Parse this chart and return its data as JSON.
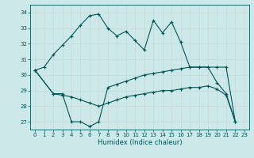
{
  "title": "",
  "xlabel": "Humidex (Indice chaleur)",
  "bg_color": "#cce8e8",
  "grid_color": "#aacccc",
  "line_color": "#005555",
  "xlim": [
    -0.5,
    23.5
  ],
  "ylim": [
    26.5,
    34.5
  ],
  "yticks": [
    27,
    28,
    29,
    30,
    31,
    32,
    33,
    34
  ],
  "xticks": [
    0,
    1,
    2,
    3,
    4,
    5,
    6,
    7,
    8,
    9,
    10,
    11,
    12,
    13,
    14,
    15,
    16,
    17,
    18,
    19,
    20,
    21,
    22,
    23
  ],
  "series1_x": [
    0,
    1,
    2,
    3,
    4,
    5,
    6,
    7,
    8,
    9,
    10,
    11,
    12,
    13,
    14,
    15,
    16,
    17,
    18,
    19,
    20,
    21,
    22
  ],
  "series1_y": [
    30.3,
    30.5,
    31.3,
    31.9,
    32.5,
    33.2,
    33.8,
    33.9,
    33.0,
    32.5,
    32.8,
    32.2,
    31.6,
    33.5,
    32.7,
    33.4,
    32.1,
    30.5,
    30.5,
    30.5,
    29.5,
    28.8,
    27.0
  ],
  "series2_x": [
    0,
    2,
    3,
    4,
    5,
    6,
    7,
    8,
    9,
    10,
    11,
    12,
    13,
    14,
    15,
    16,
    17,
    18,
    19,
    20,
    21,
    22
  ],
  "series2_y": [
    30.3,
    28.8,
    28.8,
    27.0,
    27.0,
    26.7,
    27.0,
    29.2,
    29.4,
    29.6,
    29.8,
    30.0,
    30.1,
    30.2,
    30.3,
    30.4,
    30.5,
    30.5,
    30.5,
    30.5,
    30.5,
    27.0
  ],
  "series3_x": [
    0,
    2,
    3,
    4,
    5,
    6,
    7,
    8,
    9,
    10,
    11,
    12,
    13,
    14,
    15,
    16,
    17,
    18,
    19,
    20,
    21,
    22
  ],
  "series3_y": [
    30.3,
    28.8,
    28.7,
    28.6,
    28.4,
    28.2,
    28.0,
    28.2,
    28.4,
    28.6,
    28.7,
    28.8,
    28.9,
    29.0,
    29.0,
    29.1,
    29.2,
    29.2,
    29.3,
    29.1,
    28.7,
    27.0
  ]
}
